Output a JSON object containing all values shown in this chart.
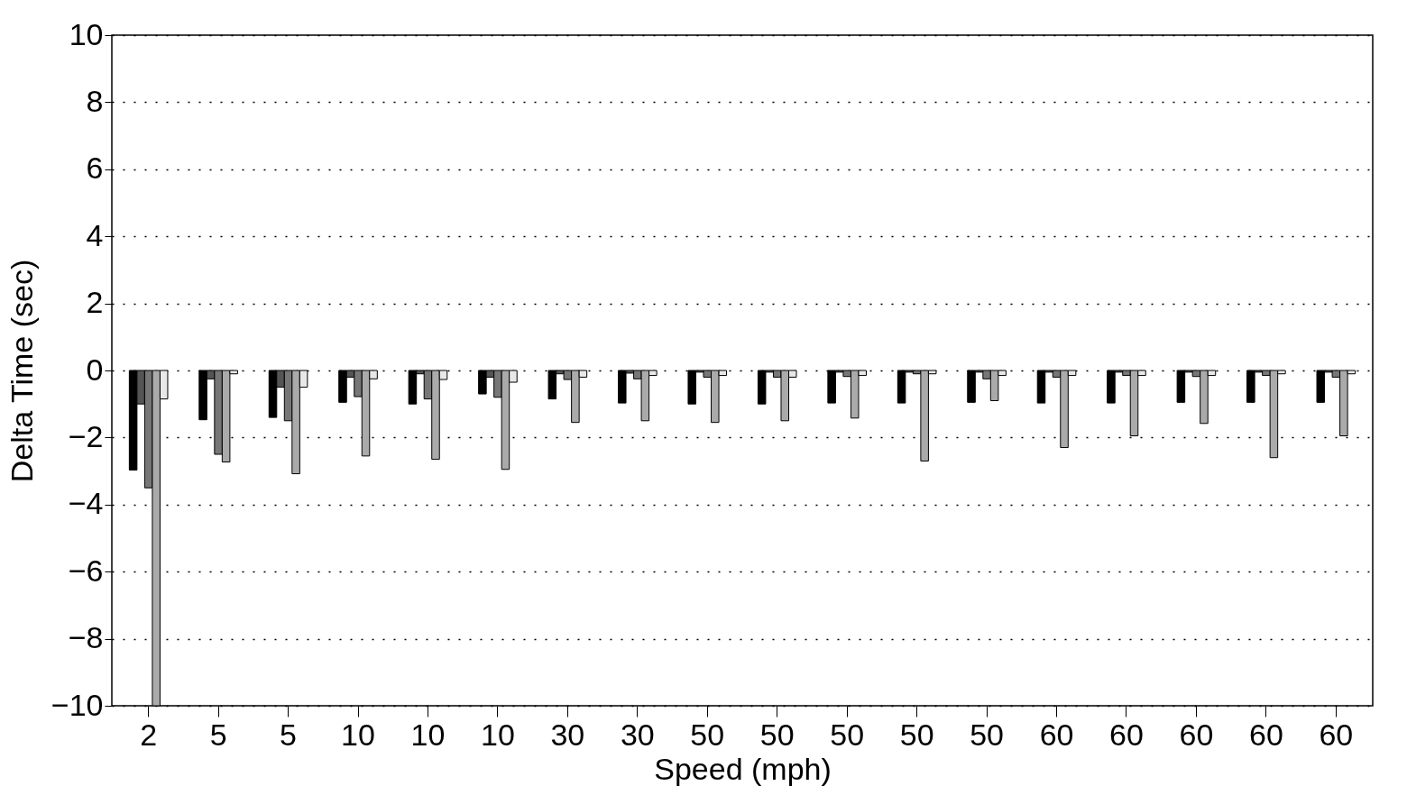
{
  "chart_data": {
    "type": "bar",
    "xlabel": "Speed (mph)",
    "ylabel": "Delta Time (sec)",
    "categories": [
      "2",
      "5",
      "5",
      "10",
      "10",
      "10",
      "30",
      "30",
      "50",
      "50",
      "50",
      "50",
      "50",
      "60",
      "60",
      "60",
      "60",
      "60"
    ],
    "series": [
      {
        "color": "#000000",
        "values": [
          -2.97,
          -1.47,
          -1.4,
          -0.95,
          -1.0,
          -0.7,
          -0.85,
          -0.97,
          -1.0,
          -1.0,
          -0.97,
          -0.97,
          -0.95,
          -0.97,
          -0.97,
          -0.95,
          -0.95,
          -0.95
        ]
      },
      {
        "color": "#555555",
        "values": [
          -1.0,
          -0.25,
          -0.5,
          -0.2,
          -0.1,
          -0.2,
          -0.1,
          -0.08,
          -0.05,
          -0.05,
          -0.05,
          -0.05,
          -0.05,
          -0.05,
          -0.05,
          -0.05,
          -0.05,
          -0.05
        ]
      },
      {
        "color": "#777777",
        "values": [
          -3.5,
          -2.5,
          -1.5,
          -0.78,
          -0.85,
          -0.8,
          -0.27,
          -0.25,
          -0.2,
          -0.2,
          -0.18,
          -0.1,
          -0.25,
          -0.2,
          -0.15,
          -0.18,
          -0.15,
          -0.2
        ]
      },
      {
        "color": "#aaaaaa",
        "values": [
          -10,
          -2.73,
          -3.08,
          -2.55,
          -2.65,
          -2.95,
          -1.55,
          -1.5,
          -1.55,
          -1.5,
          -1.42,
          -2.7,
          -0.9,
          -2.3,
          -1.95,
          -1.58,
          -2.6,
          -1.95
        ]
      },
      {
        "color": "#e8e8e8",
        "values": [
          -0.85,
          -0.1,
          -0.5,
          -0.25,
          -0.27,
          -0.35,
          -0.2,
          -0.15,
          -0.15,
          -0.2,
          -0.15,
          -0.1,
          -0.15,
          -0.15,
          -0.15,
          -0.15,
          -0.1,
          -0.1
        ]
      }
    ],
    "ylim": [
      -10,
      10
    ],
    "yticks": [
      -10,
      -8,
      -6,
      -4,
      -2,
      0,
      2,
      4,
      6,
      8,
      10
    ],
    "grid": "y",
    "legend": false
  }
}
